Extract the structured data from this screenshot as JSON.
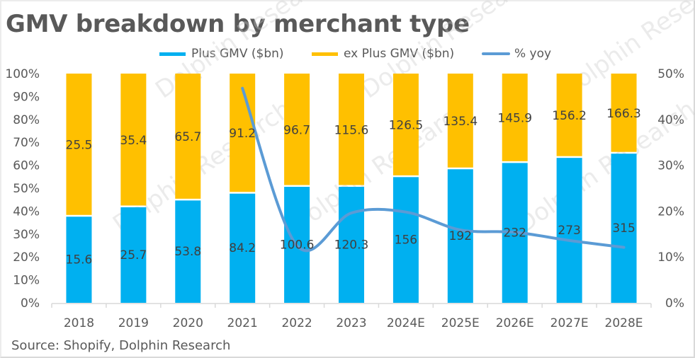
{
  "title": "GMV breakdown by merchant type",
  "source": "Source:   Shopify, Dolphin Research",
  "watermark": "Dolphin Research",
  "colors": {
    "plus": "#00B0F0",
    "ex_plus": "#FFC000",
    "yoy_line": "#5B9BD5",
    "text": "#595959",
    "axis": "#d9d9d9"
  },
  "legend": [
    {
      "label": "Plus GMV ($bn)",
      "type": "bar",
      "color": "#00B0F0"
    },
    {
      "label": "ex Plus GMV ($bn)",
      "type": "bar",
      "color": "#FFC000"
    },
    {
      "label": "% yoy",
      "type": "line",
      "color": "#5B9BD5"
    }
  ],
  "chart_data": {
    "type": "bar",
    "subtype": "100% stacked bar with line on secondary axis",
    "title": "GMV breakdown by merchant type",
    "categories": [
      "2018",
      "2019",
      "2020",
      "2021",
      "2022",
      "2023",
      "2024E",
      "2025E",
      "2026E",
      "2027E",
      "2028E"
    ],
    "series": [
      {
        "name": "Plus GMV ($bn)",
        "type": "bar",
        "axis": "left",
        "values": [
          15.6,
          25.7,
          53.8,
          84.2,
          100.6,
          120.3,
          156,
          192,
          232,
          273,
          315
        ]
      },
      {
        "name": "ex Plus GMV ($bn)",
        "type": "bar",
        "axis": "left",
        "values": [
          25.5,
          35.4,
          65.7,
          91.2,
          96.7,
          115.6,
          126.5,
          135.4,
          145.9,
          156.2,
          166.3
        ]
      },
      {
        "name": "% yoy",
        "type": "line",
        "axis": "right",
        "smooth": true,
        "values": [
          null,
          null,
          null,
          46.8,
          12.5,
          19.6,
          19.8,
          15.9,
          15.4,
          13.6,
          12.1
        ]
      }
    ],
    "y_left": {
      "label": "",
      "range": [
        0,
        100
      ],
      "ticks": [
        "0%",
        "10%",
        "20%",
        "30%",
        "40%",
        "50%",
        "60%",
        "70%",
        "80%",
        "90%",
        "100%"
      ]
    },
    "y_right": {
      "label": "",
      "range": [
        0,
        50
      ],
      "ticks": [
        "0%",
        "10%",
        "20%",
        "30%",
        "40%",
        "50%"
      ]
    },
    "xlabel": "",
    "grid": false,
    "legend_position": "top"
  }
}
